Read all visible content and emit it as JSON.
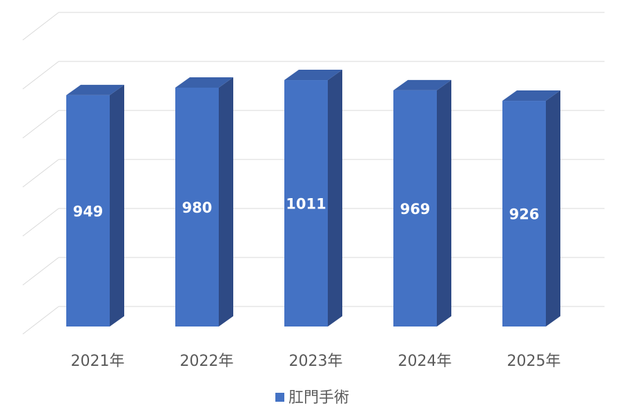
{
  "chart_data": {
    "type": "bar",
    "subtype": "3d-column",
    "categories": [
      "2021年",
      "2022年",
      "2023年",
      "2024年",
      "2025年"
    ],
    "series": [
      {
        "name": "肛門手術",
        "values": [
          949,
          980,
          1011,
          969,
          926
        ]
      }
    ],
    "ylim": [
      0,
      1300
    ],
    "grid": true,
    "legend_position": "bottom",
    "data_labels": true,
    "colors": {
      "bar_front": "#4472C4",
      "bar_side": "#2E4A85",
      "bar_top": "#3A61AA",
      "grid": "#D9D9D9",
      "axis_text": "#595959"
    }
  }
}
